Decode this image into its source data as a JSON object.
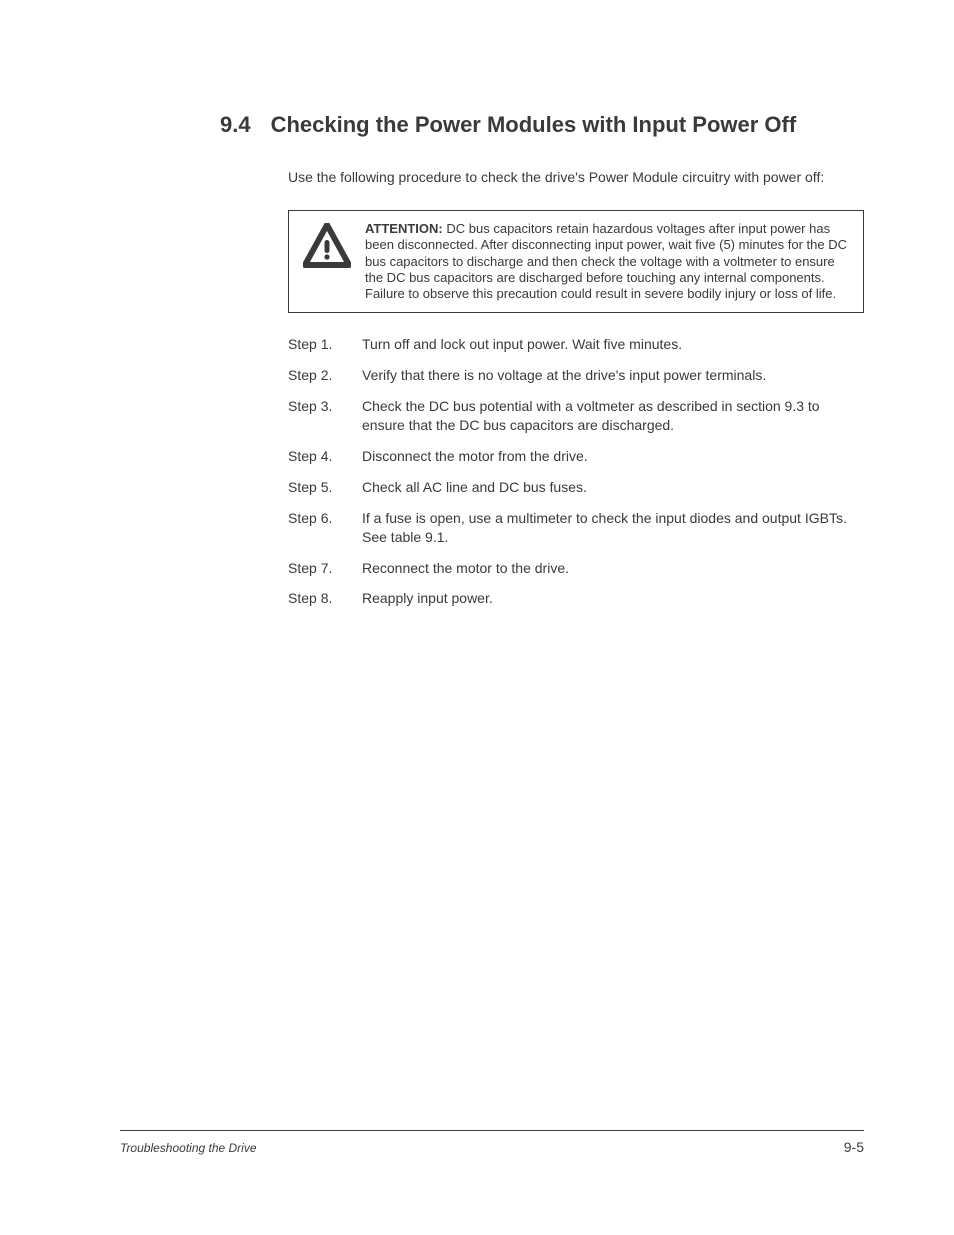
{
  "colors": {
    "text": "#3a3a3a",
    "background": "#ffffff",
    "border": "#3a3a3a"
  },
  "typography": {
    "body_family": "Arial, Helvetica, sans-serif",
    "body_size_pt": 10,
    "heading_size_pt": 16,
    "footer_title_size_pt": 9,
    "footer_title_style": "italic"
  },
  "section": {
    "number": "9.4",
    "title": "Checking the Power Modules with Input Power Off"
  },
  "intro": "Use the following procedure to check the drive's Power Module circuitry with power off:",
  "attention": {
    "icon": "warning-triangle",
    "label": "ATTENTION:",
    "body": "DC bus capacitors retain hazardous voltages after input power has been disconnected. After disconnecting input power, wait five (5) minutes for the DC bus capacitors to discharge and then check the voltage with a voltmeter to ensure the DC bus capacitors are discharged before touching any internal components. Failure to observe this precaution could result in severe bodily injury or loss of life."
  },
  "steps": [
    {
      "label": "Step 1.",
      "text": "Turn off and lock out input power. Wait five minutes."
    },
    {
      "label": "Step 2.",
      "text": "Verify that there is no voltage at the drive's input power terminals."
    },
    {
      "label": "Step 3.",
      "text": "Check the DC bus potential with a voltmeter as described in section 9.3 to ensure that the DC bus capacitors are discharged."
    },
    {
      "label": "Step 4.",
      "text": "Disconnect the motor from the drive."
    },
    {
      "label": "Step 5.",
      "text": "Check all AC line and DC bus fuses."
    },
    {
      "label": "Step 6.",
      "text": "If a fuse is open, use a multimeter to check the input diodes and output IGBTs. See table 9.1."
    },
    {
      "label": "Step 7.",
      "text": "Reconnect the motor to the drive."
    },
    {
      "label": "Step 8.",
      "text": "Reapply input power."
    }
  ],
  "footer": {
    "title": "Troubleshooting the Drive",
    "page": "9-5"
  }
}
